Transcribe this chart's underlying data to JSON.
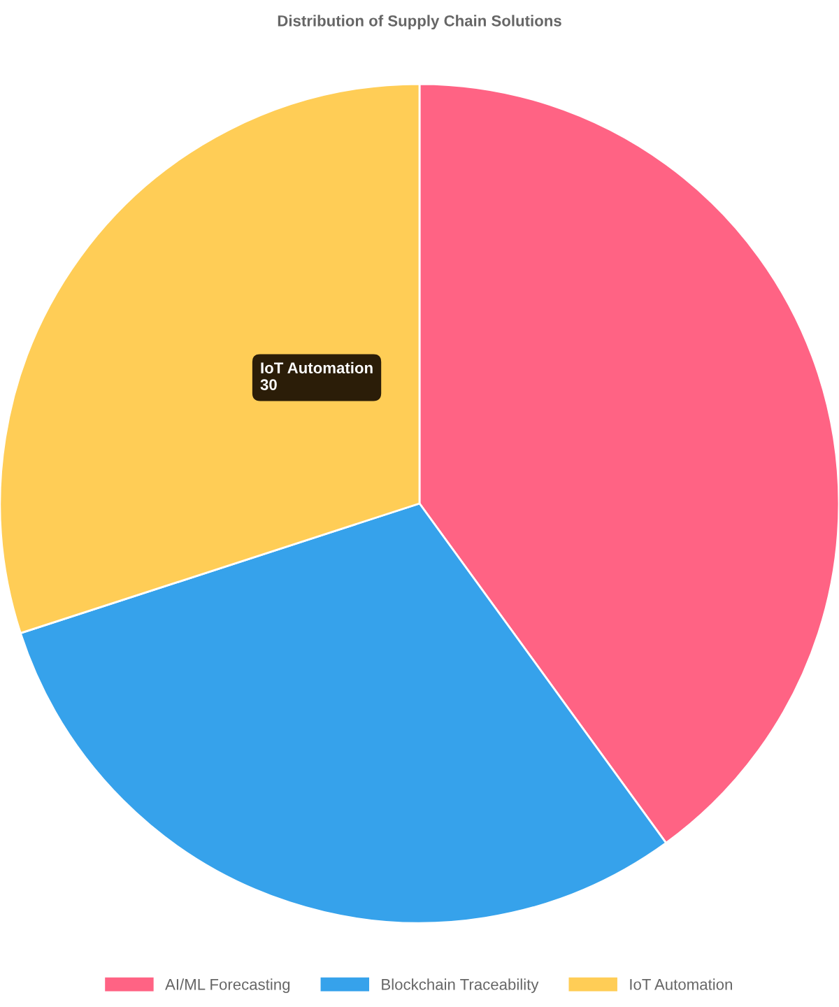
{
  "chart_data": {
    "type": "pie",
    "title": "Distribution of Supply Chain Solutions",
    "categories": [
      "AI/ML Forecasting",
      "Blockchain Traceability",
      "IoT Automation"
    ],
    "values": [
      40,
      30,
      30
    ],
    "colors": [
      "#ff6384",
      "#36a2eb",
      "#ffcd56"
    ],
    "legend": "bottom",
    "annotations": [
      "IoT Automation\n30"
    ]
  }
}
